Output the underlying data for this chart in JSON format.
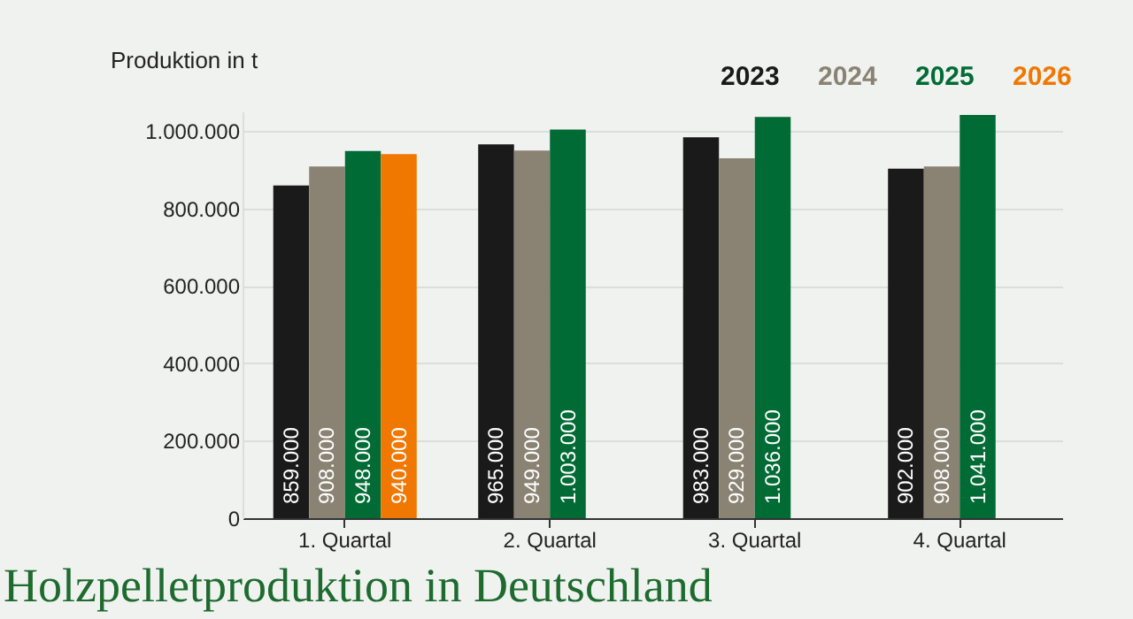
{
  "chart_data": {
    "type": "bar",
    "title": "Holzpelletproduktion in Deutschland",
    "ylabel": "Produktion in t",
    "categories": [
      "1. Quartal",
      "2. Quartal",
      "3. Quartal",
      "4. Quartal"
    ],
    "series": [
      {
        "name": "2023",
        "color": "#1a1a1a",
        "values": [
          859000,
          965000,
          983000,
          902000
        ],
        "value_labels": [
          "859.000",
          "965.000",
          "983.000",
          "902.000"
        ]
      },
      {
        "name": "2024",
        "color": "#8a8272",
        "values": [
          908000,
          949000,
          929000,
          908000
        ],
        "value_labels": [
          "908.000",
          "949.000",
          "929.000",
          "908.000"
        ]
      },
      {
        "name": "2025",
        "color": "#006b35",
        "values": [
          948000,
          1003000,
          1036000,
          1041000
        ],
        "value_labels": [
          "948.000",
          "1.003.000",
          "1.036.000",
          "1.041.000"
        ]
      },
      {
        "name": "2026",
        "color": "#f07800",
        "values": [
          940000,
          null,
          null,
          null
        ],
        "value_labels": [
          "940.000",
          null,
          null,
          null
        ]
      }
    ],
    "ylim": [
      0,
      1050000
    ],
    "yticks": [
      0,
      {
        "value": 200000,
        "label": "200.000"
      },
      {
        "value": 400000,
        "label": "400.000"
      },
      {
        "value": 600000,
        "label": "600.000"
      },
      {
        "value": 800000,
        "label": "800.000"
      },
      {
        "value": 1000000,
        "label": "1.000.000"
      }
    ],
    "grid": "y",
    "legend": "top right"
  }
}
